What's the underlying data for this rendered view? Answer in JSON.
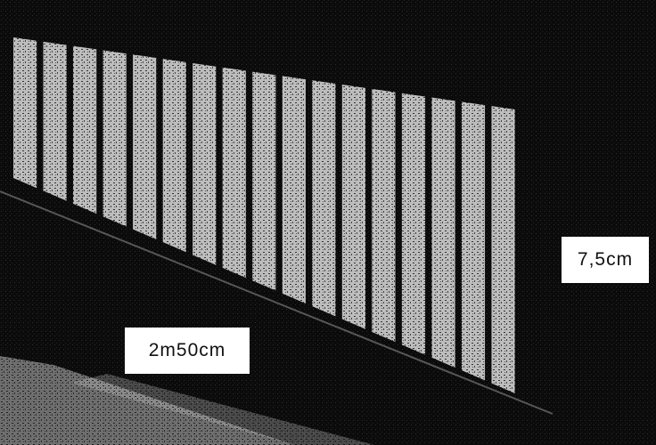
{
  "labels": {
    "length": "2m50cm",
    "height": "7,5cm"
  }
}
